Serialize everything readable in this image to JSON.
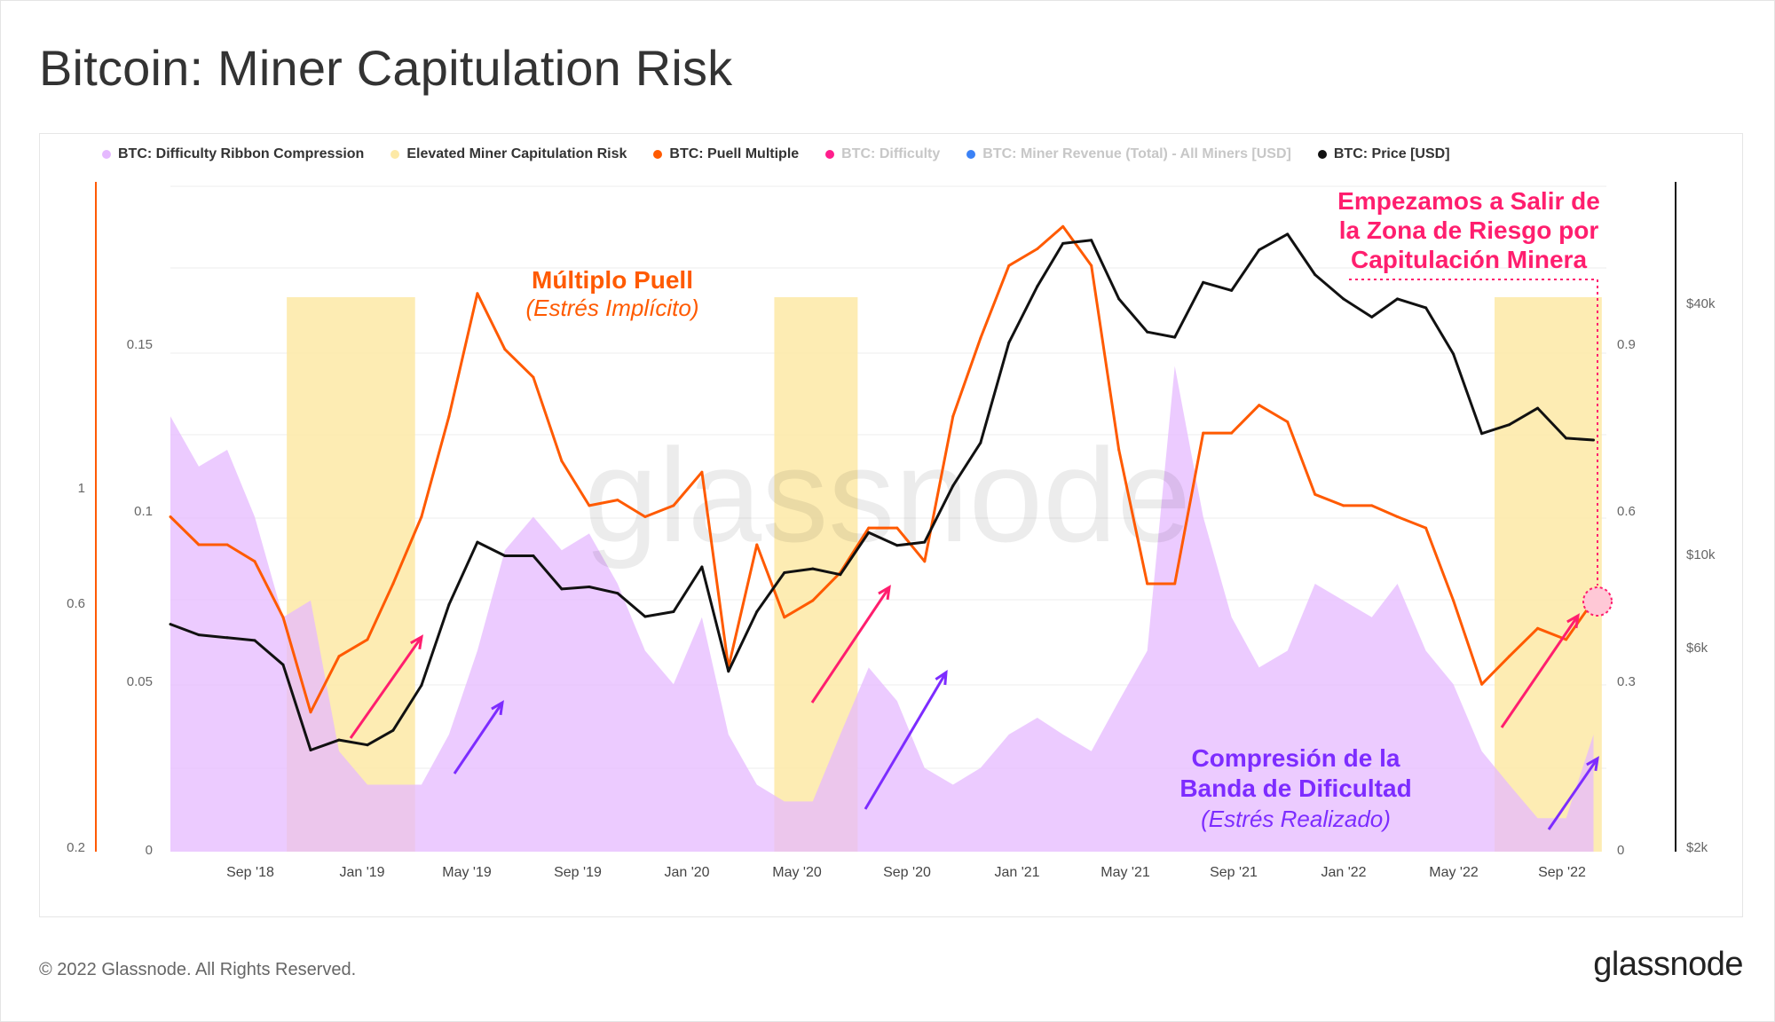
{
  "title": "Bitcoin: Miner Capitulation Risk",
  "footer": {
    "copyright": "© 2022 Glassnode. All Rights Reserved.",
    "logo": "glassnode"
  },
  "watermark": "glassnode",
  "legend": [
    {
      "label": "BTC: Difficulty Ribbon Compression",
      "color": "#e5b9ff",
      "dim": false
    },
    {
      "label": "Elevated Miner Capitulation Risk",
      "color": "#fde9a6",
      "dim": false
    },
    {
      "label": "BTC: Puell Multiple",
      "color": "#ff5a00",
      "dim": false
    },
    {
      "label": "BTC: Difficulty",
      "color": "#ff1e8c",
      "dim": true
    },
    {
      "label": "BTC: Miner Revenue (Total) - All Miners [USD]",
      "color": "#3b82f6",
      "dim": true
    },
    {
      "label": "BTC: Price [USD]",
      "color": "#111111",
      "dim": false
    }
  ],
  "annotations": {
    "puell_title": "Múltiplo Puell",
    "puell_sub": "(Estrés Implícito)",
    "exit_line1": "Empezamos a Salir de",
    "exit_line2": "la Zona de Riesgo por",
    "exit_line3": "Capitulación Minera",
    "ribbon_line1": "Compresión de la",
    "ribbon_line2": "Banda de Dificultad",
    "ribbon_sub": "(Estrés Realizado)"
  },
  "colors": {
    "ribbon": "#e5b9ff",
    "risk": "#fde9a6",
    "puell": "#ff5a00",
    "price": "#111111",
    "pink": "#ff1e6e",
    "purple": "#7d2cff",
    "puell_text": "#ff5a00"
  },
  "chart_data": {
    "type": "line",
    "x_ticks": [
      "Sep '18",
      "Jan '19",
      "May '19",
      "Sep '19",
      "Jan '20",
      "May '20",
      "Sep '20",
      "Jan '21",
      "May '21",
      "Sep '21",
      "Jan '22",
      "May '22",
      "Sep '22"
    ],
    "axes": {
      "ribbon_left": {
        "ticks": [
          "0",
          "0.05",
          "0.1",
          "0.15"
        ],
        "range": [
          0,
          0.2
        ]
      },
      "puell_left_log": {
        "ticks": [
          "0.2",
          "0.6",
          "1"
        ]
      },
      "puell_right": {
        "ticks": [
          "0",
          "0.3",
          "0.6",
          "0.9"
        ],
        "range": [
          0,
          1.2
        ]
      },
      "price_right_log": {
        "ticks": [
          "$2k",
          "$6k",
          "$10k",
          "$40k"
        ]
      }
    },
    "risk_periods": [
      {
        "start": "2018-11-05",
        "end": "2019-03-25"
      },
      {
        "start": "2020-04-20",
        "end": "2020-07-20"
      },
      {
        "start": "2022-06-15",
        "end": "2022-10-10"
      }
    ],
    "x_range": [
      "2018-07-01",
      "2022-10-15"
    ],
    "series": [
      {
        "name": "BTC: Difficulty Ribbon Compression",
        "dates": [
          "2018-07-01",
          "2018-08-01",
          "2018-09-01",
          "2018-10-01",
          "2018-11-01",
          "2018-12-01",
          "2019-01-01",
          "2019-02-01",
          "2019-03-01",
          "2019-04-01",
          "2019-05-01",
          "2019-06-01",
          "2019-07-01",
          "2019-08-01",
          "2019-09-01",
          "2019-10-01",
          "2019-11-01",
          "2019-12-01",
          "2020-01-01",
          "2020-02-01",
          "2020-03-01",
          "2020-04-01",
          "2020-05-01",
          "2020-06-01",
          "2020-07-01",
          "2020-08-01",
          "2020-09-01",
          "2020-10-01",
          "2020-11-01",
          "2020-12-01",
          "2021-01-01",
          "2021-02-01",
          "2021-03-01",
          "2021-04-01",
          "2021-05-01",
          "2021-06-01",
          "2021-07-01",
          "2021-08-01",
          "2021-09-01",
          "2021-10-01",
          "2021-11-01",
          "2021-12-01",
          "2022-01-01",
          "2022-02-01",
          "2022-03-01",
          "2022-04-01",
          "2022-05-01",
          "2022-06-01",
          "2022-07-01",
          "2022-08-01",
          "2022-09-01",
          "2022-10-01"
        ],
        "values": [
          0.13,
          0.115,
          0.12,
          0.1,
          0.07,
          0.075,
          0.03,
          0.02,
          0.02,
          0.02,
          0.035,
          0.06,
          0.09,
          0.1,
          0.09,
          0.095,
          0.08,
          0.06,
          0.05,
          0.07,
          0.035,
          0.02,
          0.015,
          0.015,
          0.035,
          0.055,
          0.045,
          0.025,
          0.02,
          0.025,
          0.035,
          0.04,
          0.035,
          0.03,
          0.045,
          0.06,
          0.145,
          0.1,
          0.07,
          0.055,
          0.06,
          0.08,
          0.075,
          0.07,
          0.08,
          0.06,
          0.05,
          0.03,
          0.02,
          0.01,
          0.01,
          0.035
        ]
      },
      {
        "name": "BTC: Puell Multiple",
        "dates": [
          "2018-07-01",
          "2018-08-01",
          "2018-09-01",
          "2018-10-01",
          "2018-11-01",
          "2018-12-01",
          "2019-01-01",
          "2019-02-01",
          "2019-03-01",
          "2019-04-01",
          "2019-05-01",
          "2019-06-01",
          "2019-07-01",
          "2019-08-01",
          "2019-09-01",
          "2019-10-01",
          "2019-11-01",
          "2019-12-01",
          "2020-01-01",
          "2020-02-01",
          "2020-03-01",
          "2020-04-01",
          "2020-05-01",
          "2020-06-01",
          "2020-07-01",
          "2020-08-01",
          "2020-09-01",
          "2020-10-01",
          "2020-11-01",
          "2020-12-01",
          "2021-01-01",
          "2021-02-01",
          "2021-03-01",
          "2021-04-01",
          "2021-05-01",
          "2021-06-01",
          "2021-07-01",
          "2021-08-01",
          "2021-09-01",
          "2021-10-01",
          "2021-11-01",
          "2021-12-01",
          "2022-01-01",
          "2022-02-01",
          "2022-03-01",
          "2022-04-01",
          "2022-05-01",
          "2022-06-01",
          "2022-07-01",
          "2022-08-01",
          "2022-09-01",
          "2022-10-01"
        ],
        "values": [
          0.6,
          0.55,
          0.55,
          0.52,
          0.42,
          0.25,
          0.35,
          0.38,
          0.48,
          0.6,
          0.78,
          1.0,
          0.9,
          0.85,
          0.7,
          0.62,
          0.63,
          0.6,
          0.62,
          0.68,
          0.33,
          0.55,
          0.42,
          0.45,
          0.5,
          0.58,
          0.58,
          0.52,
          0.78,
          0.92,
          1.05,
          1.08,
          1.12,
          1.05,
          0.72,
          0.48,
          0.48,
          0.75,
          0.75,
          0.8,
          0.77,
          0.64,
          0.62,
          0.62,
          0.6,
          0.58,
          0.45,
          0.3,
          0.35,
          0.4,
          0.38,
          0.45
        ]
      },
      {
        "name": "BTC: Price [USD]",
        "dates": [
          "2018-07-01",
          "2018-08-01",
          "2018-09-01",
          "2018-10-01",
          "2018-11-01",
          "2018-12-01",
          "2019-01-01",
          "2019-02-01",
          "2019-03-01",
          "2019-04-01",
          "2019-05-01",
          "2019-06-01",
          "2019-07-01",
          "2019-08-01",
          "2019-09-01",
          "2019-10-01",
          "2019-11-01",
          "2019-12-01",
          "2020-01-01",
          "2020-02-01",
          "2020-03-01",
          "2020-04-01",
          "2020-05-01",
          "2020-06-01",
          "2020-07-01",
          "2020-08-01",
          "2020-09-01",
          "2020-10-01",
          "2020-11-01",
          "2020-12-01",
          "2021-01-01",
          "2021-02-01",
          "2021-03-01",
          "2021-04-01",
          "2021-05-01",
          "2021-06-01",
          "2021-07-01",
          "2021-08-01",
          "2021-09-01",
          "2021-10-01",
          "2021-11-01",
          "2021-12-01",
          "2022-01-01",
          "2022-02-01",
          "2022-03-01",
          "2022-04-01",
          "2022-05-01",
          "2022-06-01",
          "2022-07-01",
          "2022-08-01",
          "2022-09-01",
          "2022-10-01"
        ],
        "values": [
          7000,
          6600,
          6500,
          6400,
          5600,
          3500,
          3700,
          3600,
          3900,
          5000,
          7800,
          11000,
          10200,
          10200,
          8500,
          8600,
          8300,
          7300,
          7500,
          9600,
          5400,
          7500,
          9300,
          9500,
          9200,
          11600,
          10800,
          11000,
          15000,
          19000,
          33000,
          45000,
          57000,
          58000,
          42000,
          35000,
          34000,
          46000,
          44000,
          55000,
          60000,
          48000,
          42000,
          38000,
          42000,
          40000,
          31000,
          20000,
          21000,
          23000,
          19500,
          19300
        ]
      }
    ]
  }
}
